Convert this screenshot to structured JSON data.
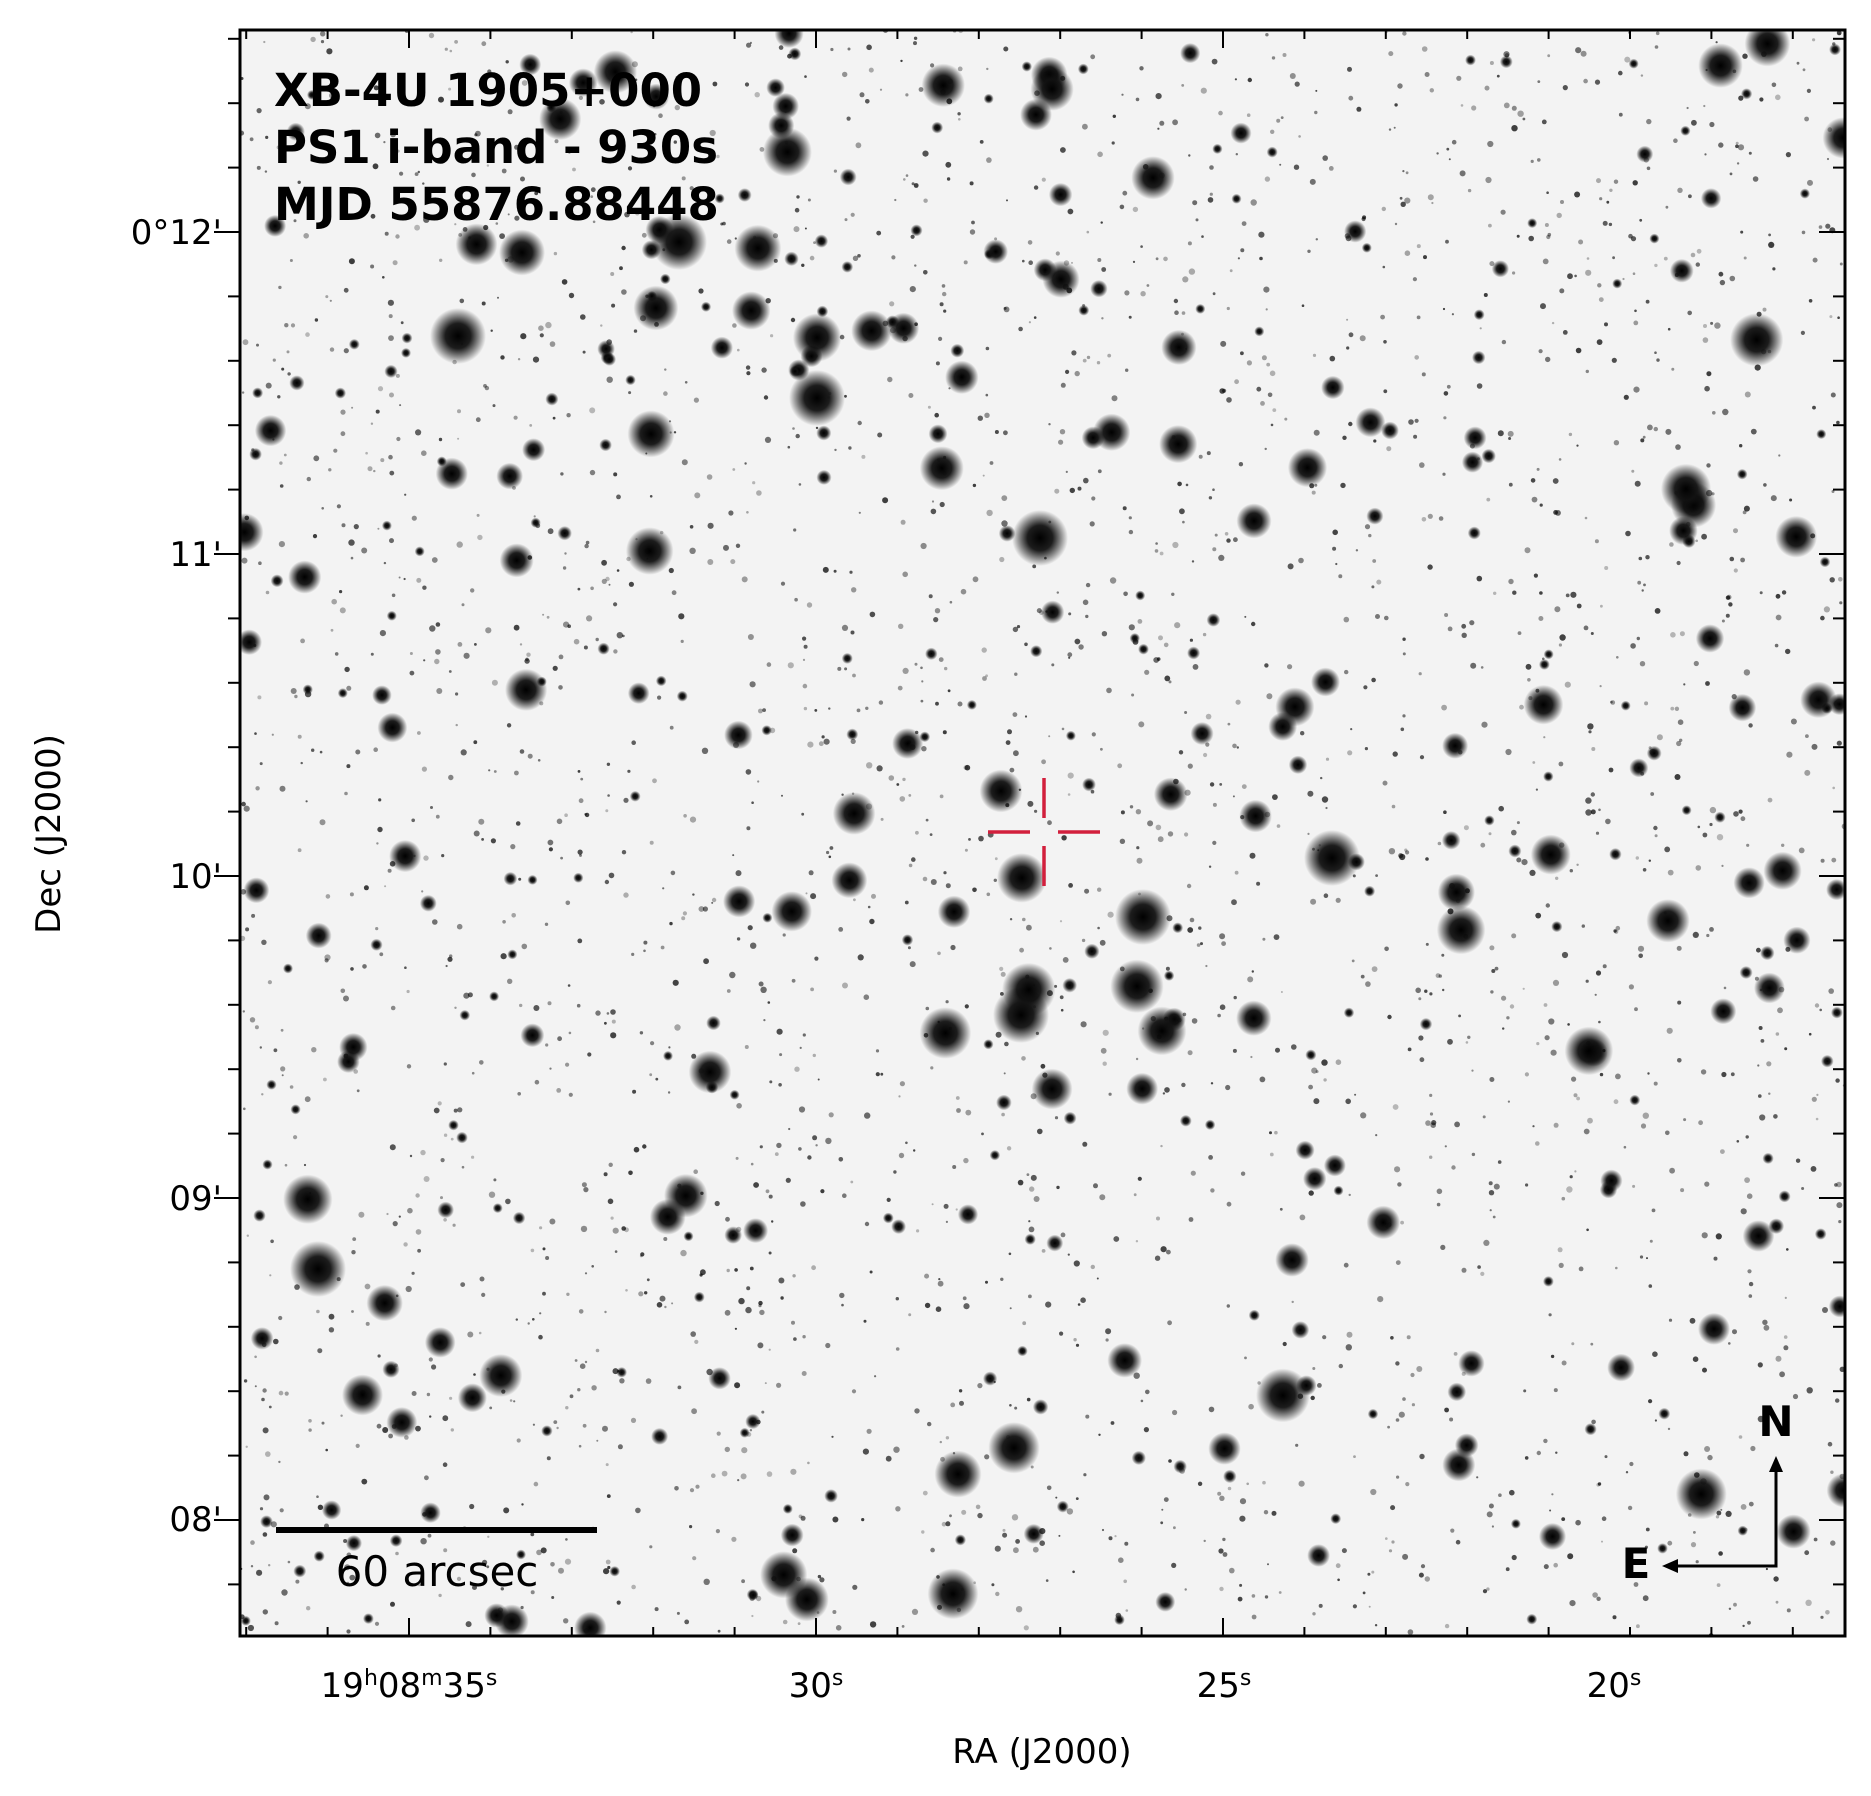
{
  "title": {
    "lines": [
      "XB-4U 1905+000",
      "PS1 i-band - 930s",
      "MJD 55876.88448"
    ]
  },
  "axes": {
    "x_label": "RA (J2000)",
    "y_label": "Dec (J2000)",
    "x_ticks": [
      [
        [
          "19",
          "h"
        ],
        [
          "08",
          "m"
        ],
        [
          "35",
          "s"
        ]
      ],
      [
        [
          "30",
          "s"
        ]
      ],
      [
        [
          "25",
          "s"
        ]
      ],
      [
        [
          "20",
          "s"
        ]
      ]
    ],
    "y_ticks": [
      "0°12'",
      "11'",
      "10'",
      "09'",
      "08'"
    ]
  },
  "scale_bar": {
    "label": "60 arcsec"
  },
  "compass": {
    "north": "N",
    "east": "E"
  }
}
